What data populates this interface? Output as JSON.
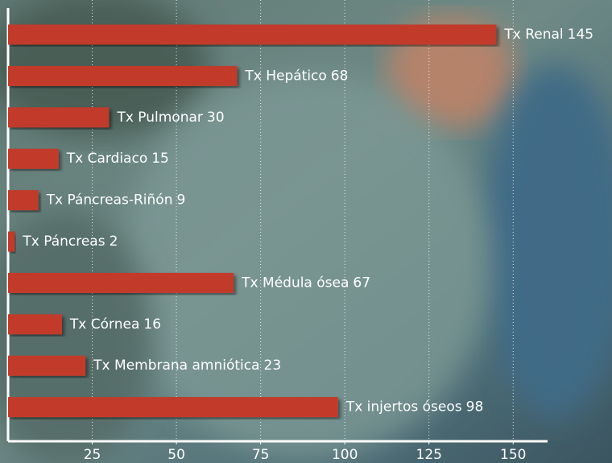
{
  "chart_data": {
    "type": "barh",
    "categories": [
      "Tx Renal",
      "Tx Hepático",
      "Tx Pulmonar",
      "Tx Cardiaco",
      "Tx Páncreas-Riñón",
      "Tx Páncreas",
      "Tx Médula ósea",
      "Tx Córnea",
      "Tx Membrana amniótica",
      "Tx injertos óseos"
    ],
    "values": [
      145,
      68,
      30,
      15,
      9,
      2,
      67,
      16,
      23,
      98
    ],
    "color": "#c23b2c",
    "xlim": [
      0,
      165
    ],
    "xticks": [
      25,
      50,
      75,
      100,
      125,
      150
    ],
    "grid": true
  }
}
